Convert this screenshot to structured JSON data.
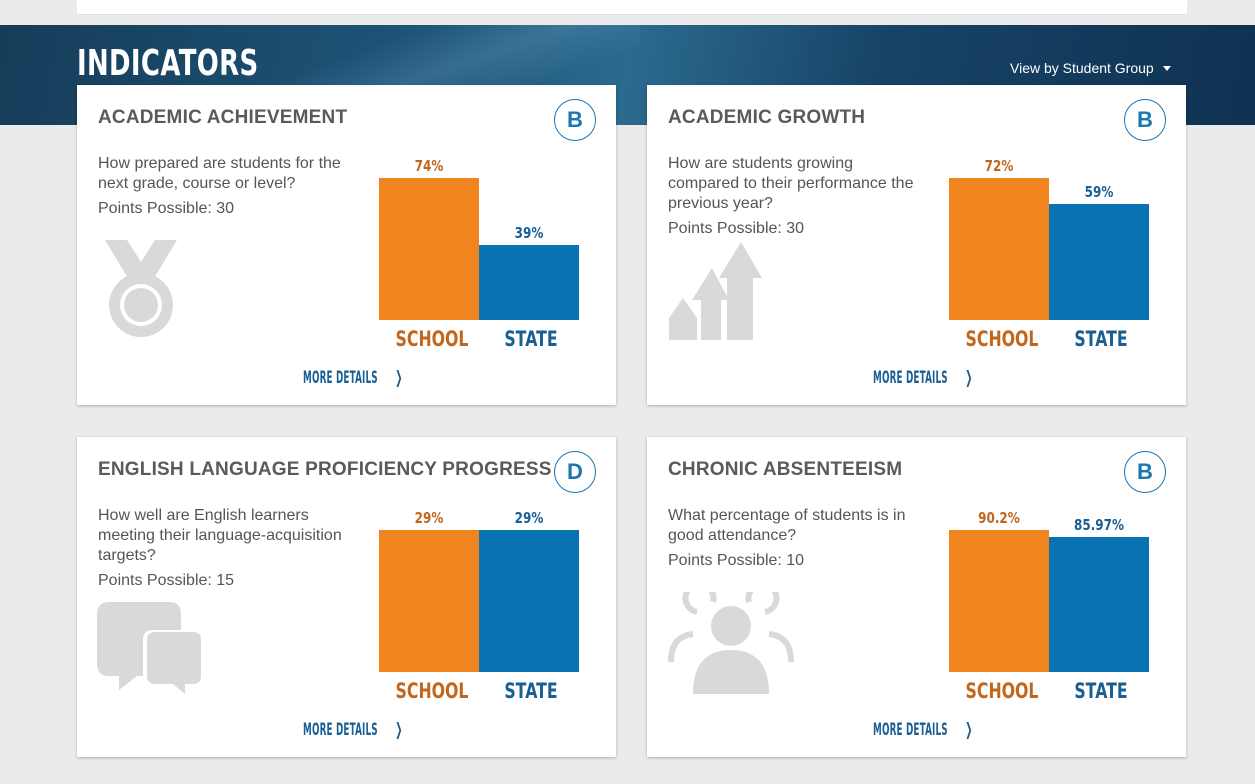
{
  "header": {
    "title": "INDICATORS",
    "view_dropdown_label": "View by Student Group"
  },
  "colors": {
    "school": "#f0841f",
    "state": "#0872b3",
    "school_text": "#c1661c",
    "state_text": "#1a5f94",
    "icon_gray": "#d9d9d9"
  },
  "cards": [
    {
      "title": "ACADEMIC ACHIEVEMENT",
      "grade": "B",
      "question": "How prepared are students for the next grade, course or level?",
      "points": "Points Possible: 30",
      "icon": "medal-icon",
      "more_details": "MORE DETAILS",
      "chart_data": {
        "type": "bar",
        "categories": [
          "SCHOOL",
          "STATE"
        ],
        "values": [
          74,
          39
        ],
        "value_labels": [
          "74%",
          "39%"
        ],
        "ylim": [
          0,
          74
        ]
      }
    },
    {
      "title": "ACADEMIC GROWTH",
      "grade": "B",
      "question": "How are students growing compared to their performance the previous year?",
      "points": "Points Possible: 30",
      "icon": "growth-arrows-icon",
      "more_details": "MORE DETAILS",
      "chart_data": {
        "type": "bar",
        "categories": [
          "SCHOOL",
          "STATE"
        ],
        "values": [
          72,
          59
        ],
        "value_labels": [
          "72%",
          "59%"
        ],
        "ylim": [
          0,
          72
        ]
      }
    },
    {
      "title": "ENGLISH LANGUAGE PROFICIENCY PROGRESS",
      "grade": "D",
      "question": "How well are English learners meeting their language-acquisition targets?",
      "points": "Points Possible: 15",
      "icon": "speech-bubbles-icon",
      "more_details": "MORE DETAILS",
      "chart_data": {
        "type": "bar",
        "categories": [
          "SCHOOL",
          "STATE"
        ],
        "values": [
          29,
          29
        ],
        "value_labels": [
          "29%",
          "29%"
        ],
        "ylim": [
          0,
          29
        ]
      }
    },
    {
      "title": "CHRONIC ABSENTEEISM",
      "grade": "B",
      "question": "What percentage of students is in good attendance?",
      "points": "Points Possible: 10",
      "icon": "people-group-icon",
      "more_details": "MORE DETAILS",
      "chart_data": {
        "type": "bar",
        "categories": [
          "SCHOOL",
          "STATE"
        ],
        "values": [
          90.2,
          85.97
        ],
        "value_labels": [
          "90.2%",
          "85.97%"
        ],
        "ylim": [
          0,
          90.2
        ]
      }
    }
  ]
}
